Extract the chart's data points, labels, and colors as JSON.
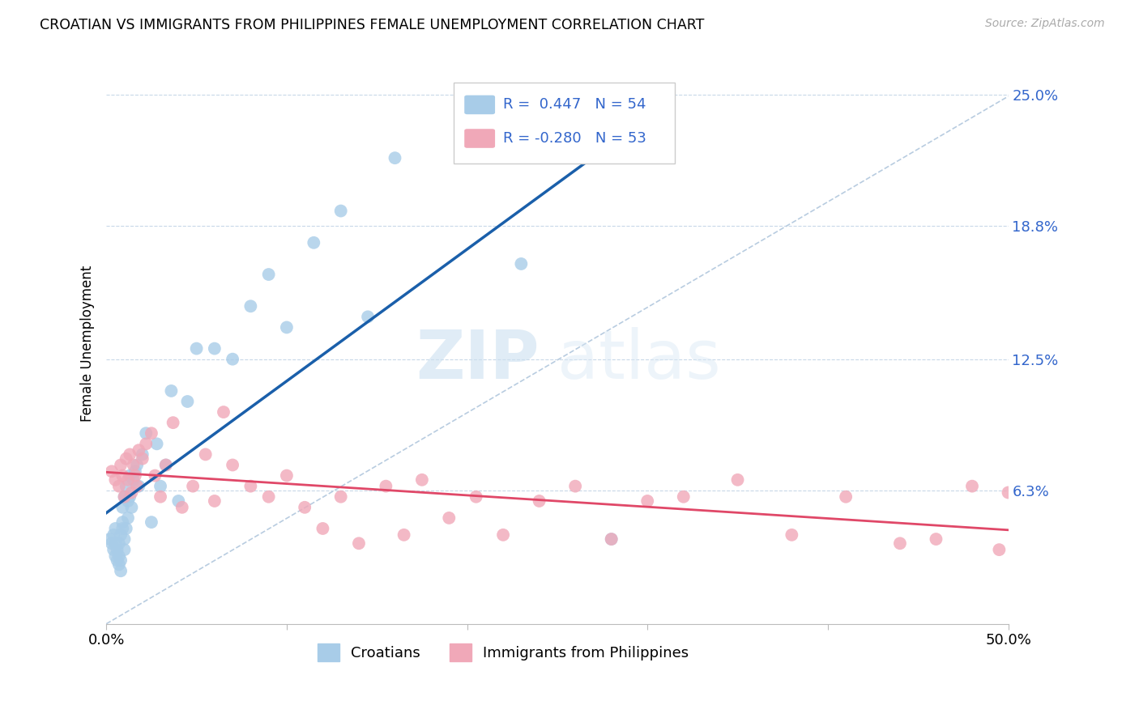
{
  "title": "CROATIAN VS IMMIGRANTS FROM PHILIPPINES FEMALE UNEMPLOYMENT CORRELATION CHART",
  "source": "Source: ZipAtlas.com",
  "ylabel": "Female Unemployment",
  "x_min": 0.0,
  "x_max": 0.5,
  "y_min": 0.0,
  "y_max": 0.265,
  "y_ticks_right": [
    0.063,
    0.125,
    0.188,
    0.25
  ],
  "y_tick_labels_right": [
    "6.3%",
    "12.5%",
    "18.8%",
    "25.0%"
  ],
  "blue_color": "#a8cce8",
  "pink_color": "#f0a8b8",
  "trend_blue": "#1a5faa",
  "trend_pink": "#e04868",
  "dashed_color": "#b8cce0",
  "watermark_zip": "ZIP",
  "watermark_atlas": "atlas",
  "legend_r1_label": "R =  0.447   N = 54",
  "legend_r2_label": "R = -0.280   N = 53",
  "legend_text_color": "#3366cc",
  "croatians_x": [
    0.002,
    0.003,
    0.004,
    0.004,
    0.005,
    0.005,
    0.005,
    0.006,
    0.006,
    0.007,
    0.007,
    0.007,
    0.008,
    0.008,
    0.008,
    0.009,
    0.009,
    0.009,
    0.01,
    0.01,
    0.01,
    0.011,
    0.011,
    0.012,
    0.012,
    0.013,
    0.013,
    0.014,
    0.015,
    0.016,
    0.017,
    0.018,
    0.02,
    0.022,
    0.025,
    0.028,
    0.03,
    0.033,
    0.036,
    0.04,
    0.045,
    0.05,
    0.06,
    0.07,
    0.08,
    0.09,
    0.1,
    0.115,
    0.13,
    0.145,
    0.16,
    0.2,
    0.23,
    0.28
  ],
  "croatians_y": [
    0.04,
    0.038,
    0.035,
    0.042,
    0.032,
    0.038,
    0.045,
    0.03,
    0.035,
    0.028,
    0.032,
    0.038,
    0.025,
    0.03,
    0.042,
    0.045,
    0.048,
    0.055,
    0.035,
    0.04,
    0.06,
    0.045,
    0.065,
    0.05,
    0.058,
    0.06,
    0.07,
    0.055,
    0.068,
    0.072,
    0.075,
    0.065,
    0.08,
    0.09,
    0.048,
    0.085,
    0.065,
    0.075,
    0.11,
    0.058,
    0.105,
    0.13,
    0.13,
    0.125,
    0.15,
    0.165,
    0.14,
    0.18,
    0.195,
    0.145,
    0.22,
    0.248,
    0.17,
    0.04
  ],
  "philippines_x": [
    0.003,
    0.005,
    0.007,
    0.008,
    0.009,
    0.01,
    0.011,
    0.012,
    0.013,
    0.014,
    0.015,
    0.016,
    0.017,
    0.018,
    0.02,
    0.022,
    0.025,
    0.027,
    0.03,
    0.033,
    0.037,
    0.042,
    0.048,
    0.055,
    0.06,
    0.065,
    0.07,
    0.08,
    0.09,
    0.1,
    0.11,
    0.12,
    0.13,
    0.14,
    0.155,
    0.165,
    0.175,
    0.19,
    0.205,
    0.22,
    0.24,
    0.26,
    0.28,
    0.3,
    0.32,
    0.35,
    0.38,
    0.41,
    0.44,
    0.46,
    0.48,
    0.495,
    0.5
  ],
  "philippines_y": [
    0.072,
    0.068,
    0.065,
    0.075,
    0.07,
    0.06,
    0.078,
    0.068,
    0.08,
    0.062,
    0.075,
    0.07,
    0.065,
    0.082,
    0.078,
    0.085,
    0.09,
    0.07,
    0.06,
    0.075,
    0.095,
    0.055,
    0.065,
    0.08,
    0.058,
    0.1,
    0.075,
    0.065,
    0.06,
    0.07,
    0.055,
    0.045,
    0.06,
    0.038,
    0.065,
    0.042,
    0.068,
    0.05,
    0.06,
    0.042,
    0.058,
    0.065,
    0.04,
    0.058,
    0.06,
    0.068,
    0.042,
    0.06,
    0.038,
    0.04,
    0.065,
    0.035,
    0.062
  ]
}
